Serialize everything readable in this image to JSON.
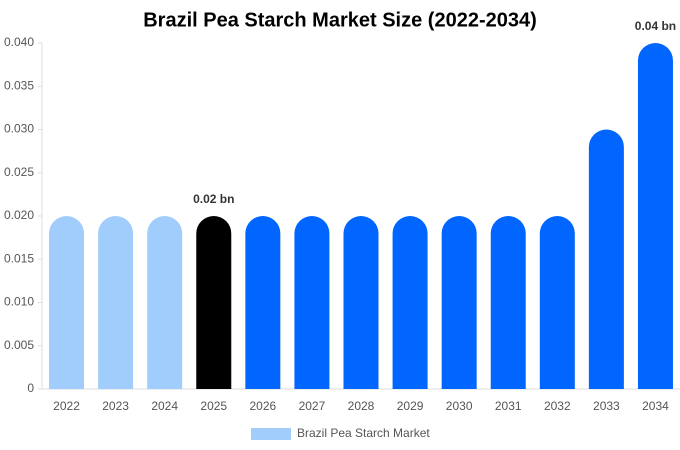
{
  "chart_data": {
    "type": "bar",
    "title": "Brazil Pea Starch Market Size (2022-2034)",
    "categories": [
      "2022",
      "2023",
      "2024",
      "2025",
      "2026",
      "2027",
      "2028",
      "2029",
      "2030",
      "2031",
      "2032",
      "2033",
      "2034"
    ],
    "series": [
      {
        "name": "Brazil Pea Starch Market",
        "color": "#a0cdfc",
        "colors": [
          "#a0cdfc",
          "#a0cdfc",
          "#a0cdfc",
          "#000000",
          "#0066ff",
          "#0066ff",
          "#0066ff",
          "#0066ff",
          "#0066ff",
          "#0066ff",
          "#0066ff",
          "#0066ff",
          "#0066ff"
        ],
        "values": [
          0.02,
          0.02,
          0.02,
          0.02,
          0.02,
          0.02,
          0.02,
          0.02,
          0.02,
          0.02,
          0.02,
          0.03,
          0.04
        ],
        "value_labels": [
          null,
          null,
          null,
          "0.02 bn",
          null,
          null,
          null,
          null,
          null,
          null,
          null,
          null,
          "0.04 bn"
        ]
      }
    ],
    "ylim": [
      0,
      0.04
    ],
    "yticks": [
      0,
      0.005,
      {
        "value": 0.01,
        "label": "0.010"
      },
      0.015,
      {
        "value": 0.02,
        "label": "0.020"
      },
      0.025,
      {
        "value": 0.03,
        "label": "0.030"
      },
      0.035,
      {
        "value": 0.04,
        "label": "0.040"
      }
    ],
    "grid": false
  }
}
